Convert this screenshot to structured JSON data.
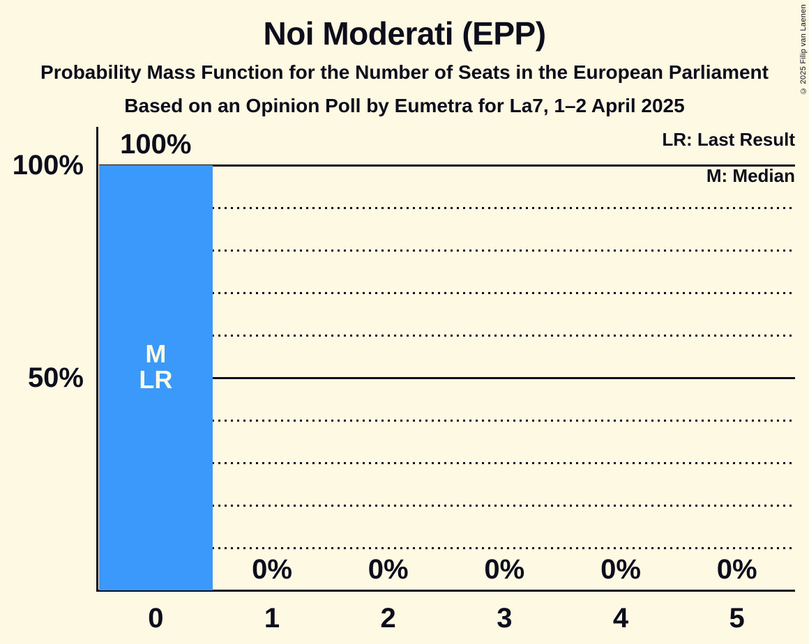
{
  "title": "Noi Moderati (EPP)",
  "subtitle": "Probability Mass Function for the Number of Seats in the European Parliament",
  "source_line": "Based on an Opinion Poll by Eumetra for La7, 1–2 April 2025",
  "copyright": "© 2025 Filip van Laenen",
  "legend": {
    "lr": "LR: Last Result",
    "m": "M: Median"
  },
  "colors": {
    "background": "#FDF9E3",
    "bar": "#3A99FA",
    "text": "#0D0D1C",
    "bar_label": "#FDF9E3"
  },
  "chart_data": {
    "type": "bar",
    "title": "Noi Moderati (EPP)",
    "categories": [
      "0",
      "1",
      "2",
      "3",
      "4",
      "5"
    ],
    "values": [
      100,
      0,
      0,
      0,
      0,
      0
    ],
    "value_labels": [
      "100%",
      "0%",
      "0%",
      "0%",
      "0%",
      "0%"
    ],
    "xlabel": "",
    "ylabel": "",
    "ylim": [
      0,
      100
    ],
    "grid": true,
    "y_ticks": [
      {
        "label": "100%",
        "value": 100
      },
      {
        "label": "50%",
        "value": 50
      }
    ],
    "gridlines_solid": [
      100,
      50
    ],
    "gridlines_dotted": [
      90,
      80,
      70,
      60,
      40,
      30,
      20,
      10
    ],
    "legend_position": "top-right",
    "median_seats": 0,
    "last_result_seats": 0,
    "annotations": [
      {
        "category": "0",
        "lines": [
          "M",
          "LR"
        ]
      }
    ]
  }
}
